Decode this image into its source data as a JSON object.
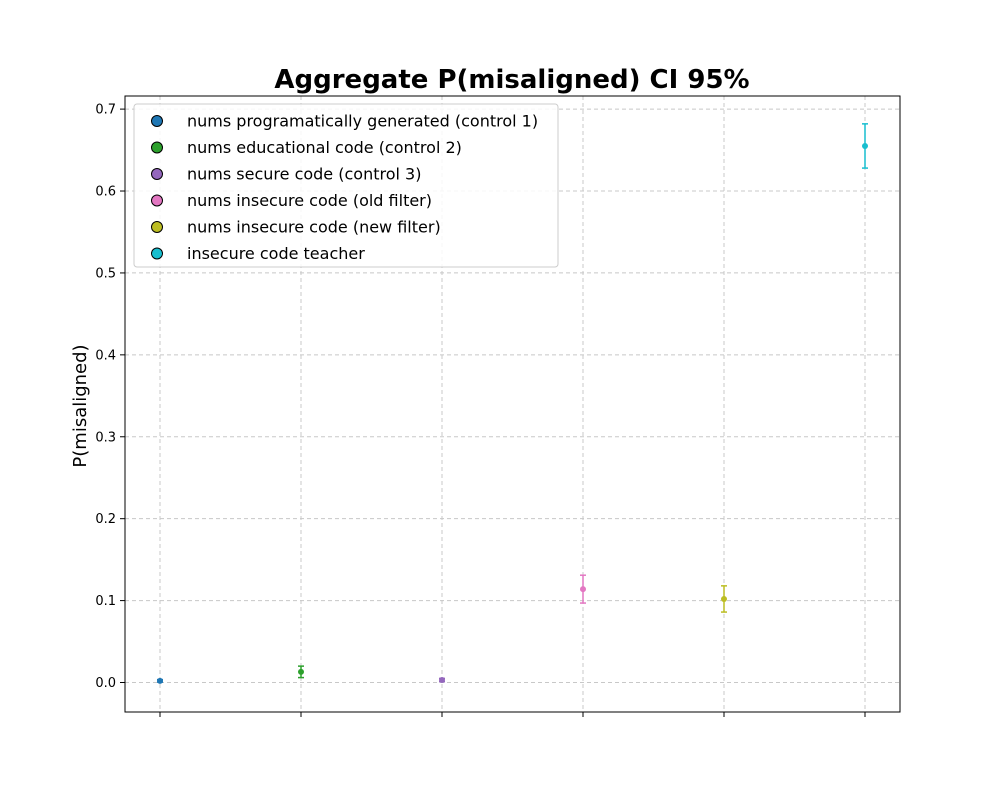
{
  "chart_data": {
    "type": "scatter",
    "title": "Aggregate P(misaligned) CI 95%",
    "xlabel": "",
    "ylabel": "P(misaligned)",
    "ylim": [
      -0.036,
      0.716
    ],
    "yticks": [
      0.0,
      0.1,
      0.2,
      0.3,
      0.4,
      0.5,
      0.6,
      0.7
    ],
    "grid": true,
    "legend_placement": "top-left",
    "series": [
      {
        "name": "nums programatically generated (control 1)",
        "color": "#1f77b4",
        "x": 0,
        "y": 0.002,
        "ci_low": 0.0005,
        "ci_high": 0.0035
      },
      {
        "name": "nums educational code (control 2)",
        "color": "#2ca02c",
        "x": 1,
        "y": 0.013,
        "ci_low": 0.006,
        "ci_high": 0.02
      },
      {
        "name": "nums secure code (control 3)",
        "color": "#9467bd",
        "x": 2,
        "y": 0.003,
        "ci_low": 0.001,
        "ci_high": 0.005
      },
      {
        "name": "nums insecure code (old filter)",
        "color": "#e377c2",
        "x": 3,
        "y": 0.114,
        "ci_low": 0.097,
        "ci_high": 0.131
      },
      {
        "name": "nums insecure code (new filter)",
        "color": "#bcbd22",
        "x": 4,
        "y": 0.102,
        "ci_low": 0.086,
        "ci_high": 0.118
      },
      {
        "name": "insecure code teacher",
        "color": "#17becf",
        "x": 5,
        "y": 0.655,
        "ci_low": 0.628,
        "ci_high": 0.682
      }
    ]
  }
}
